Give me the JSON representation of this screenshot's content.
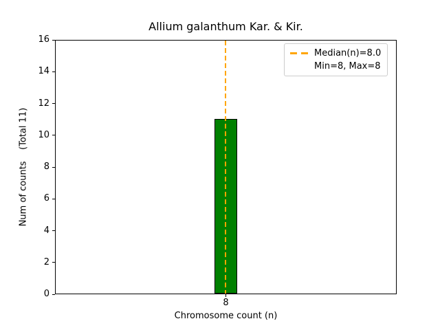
{
  "chart_data": {
    "type": "bar",
    "title": "Allium galanthum Kar. & Kir.",
    "xlabel": "Chromosome count (n)",
    "ylabel": "Num of counts    (Total 11)",
    "categories": [
      "8"
    ],
    "values": [
      11
    ],
    "ylim": [
      0,
      16
    ],
    "yticks": [
      0,
      2,
      4,
      6,
      8,
      10,
      12,
      14,
      16
    ],
    "xticks": [
      "8"
    ],
    "bar_color": "#008000",
    "bar_edge_color": "#000000",
    "median_line": {
      "x": 8,
      "color": "#FFA500",
      "style": "dashed"
    },
    "legend": {
      "position": "upper right",
      "entries": [
        {
          "label": "Median(n)=8.0",
          "swatch": "dashed-line",
          "color": "#FFA500"
        },
        {
          "label": "Min=8, Max=8",
          "swatch": "none",
          "color": null
        }
      ]
    },
    "grid": false,
    "background": "#ffffff"
  }
}
